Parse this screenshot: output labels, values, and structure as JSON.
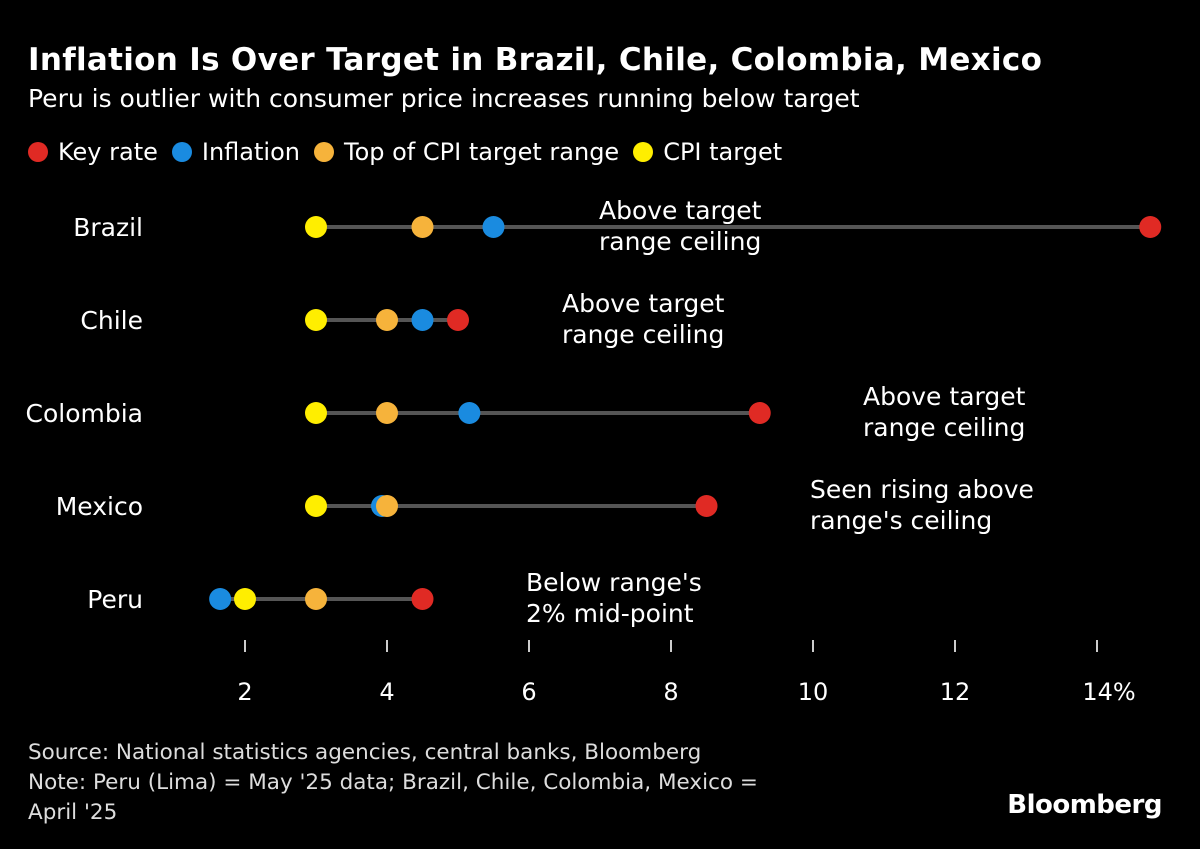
{
  "chart_data": {
    "type": "dot-range",
    "title": "Inflation Is Over Target in Brazil, Chile, Colombia, Mexico",
    "subtitle": "Peru is outlier with consumer price increases running below target",
    "legend_position": "top-left",
    "series": [
      {
        "name": "Key rate",
        "color": "#e02a24",
        "values": [
          14.75,
          5.0,
          9.25,
          8.5,
          4.5
        ]
      },
      {
        "name": "Inflation",
        "color": "#1a8be0",
        "values": [
          5.5,
          4.5,
          5.16,
          3.93,
          1.65
        ]
      },
      {
        "name": "Top of CPI target range",
        "color": "#f6b33b",
        "values": [
          4.5,
          4.0,
          4.0,
          4.0,
          3.0
        ]
      },
      {
        "name": "CPI target",
        "color": "#ffee00",
        "values": [
          3.0,
          3.0,
          3.0,
          3.0,
          2.0
        ]
      }
    ],
    "categories": [
      "Brazil",
      "Chile",
      "Colombia",
      "Mexico",
      "Peru"
    ],
    "annotations": [
      {
        "category": "Brazil",
        "lines": [
          "Above target",
          "range ceiling"
        ]
      },
      {
        "category": "Chile",
        "lines": [
          "Above target",
          "range ceiling"
        ]
      },
      {
        "category": "Colombia",
        "lines": [
          "Above target",
          "range ceiling"
        ]
      },
      {
        "category": "Mexico",
        "lines": [
          "Seen rising above",
          "range's ceiling"
        ]
      },
      {
        "category": "Peru",
        "lines": [
          "Below range's",
          "2% mid-point"
        ]
      }
    ],
    "xticks": [
      2,
      4,
      6,
      8,
      10,
      12,
      14
    ],
    "xtick_labels": [
      "2",
      "4",
      "6",
      "8",
      "10",
      "12",
      "14%"
    ],
    "xlim": [
      0,
      15.5
    ],
    "grid": false,
    "connector_color": "#555555"
  },
  "footer": {
    "source": "Source: National statistics agencies, central banks, Bloomberg",
    "note_line1": "Note: Peru (Lima) = May '25 data; Brazil, Chile, Colombia, Mexico =",
    "note_line2": "April '25"
  },
  "logo": "Bloomberg"
}
